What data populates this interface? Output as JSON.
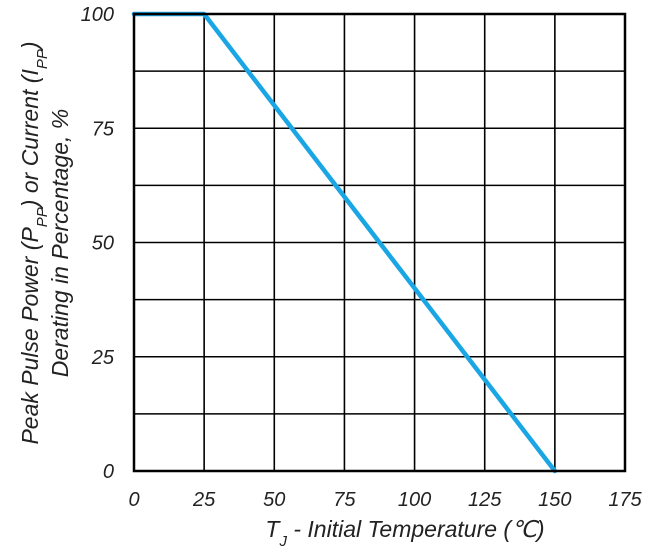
{
  "chart_data": {
    "type": "line",
    "title": "",
    "xlabel": {
      "main": "T",
      "sub": "J",
      "rest": " - Initial Temperature (℃)"
    },
    "ylabel": {
      "line1": {
        "p1": "Peak Pulse Power (P",
        "s1": "PP",
        "p2": ") or Current (I",
        "s2": "PP",
        "p3": ")"
      },
      "line2": "Derating in Percentage, %"
    },
    "xlim": [
      0,
      175
    ],
    "ylim": [
      0,
      100
    ],
    "x_ticks": [
      "0",
      "25",
      "50",
      "75",
      "100",
      "125",
      "150",
      "175"
    ],
    "y_ticks": [
      "0",
      "25",
      "50",
      "75",
      "100"
    ],
    "grid": true,
    "series": [
      {
        "x": [
          0,
          25,
          150
        ],
        "y": [
          100,
          100,
          0
        ],
        "color": "#1aa6e4"
      }
    ]
  }
}
